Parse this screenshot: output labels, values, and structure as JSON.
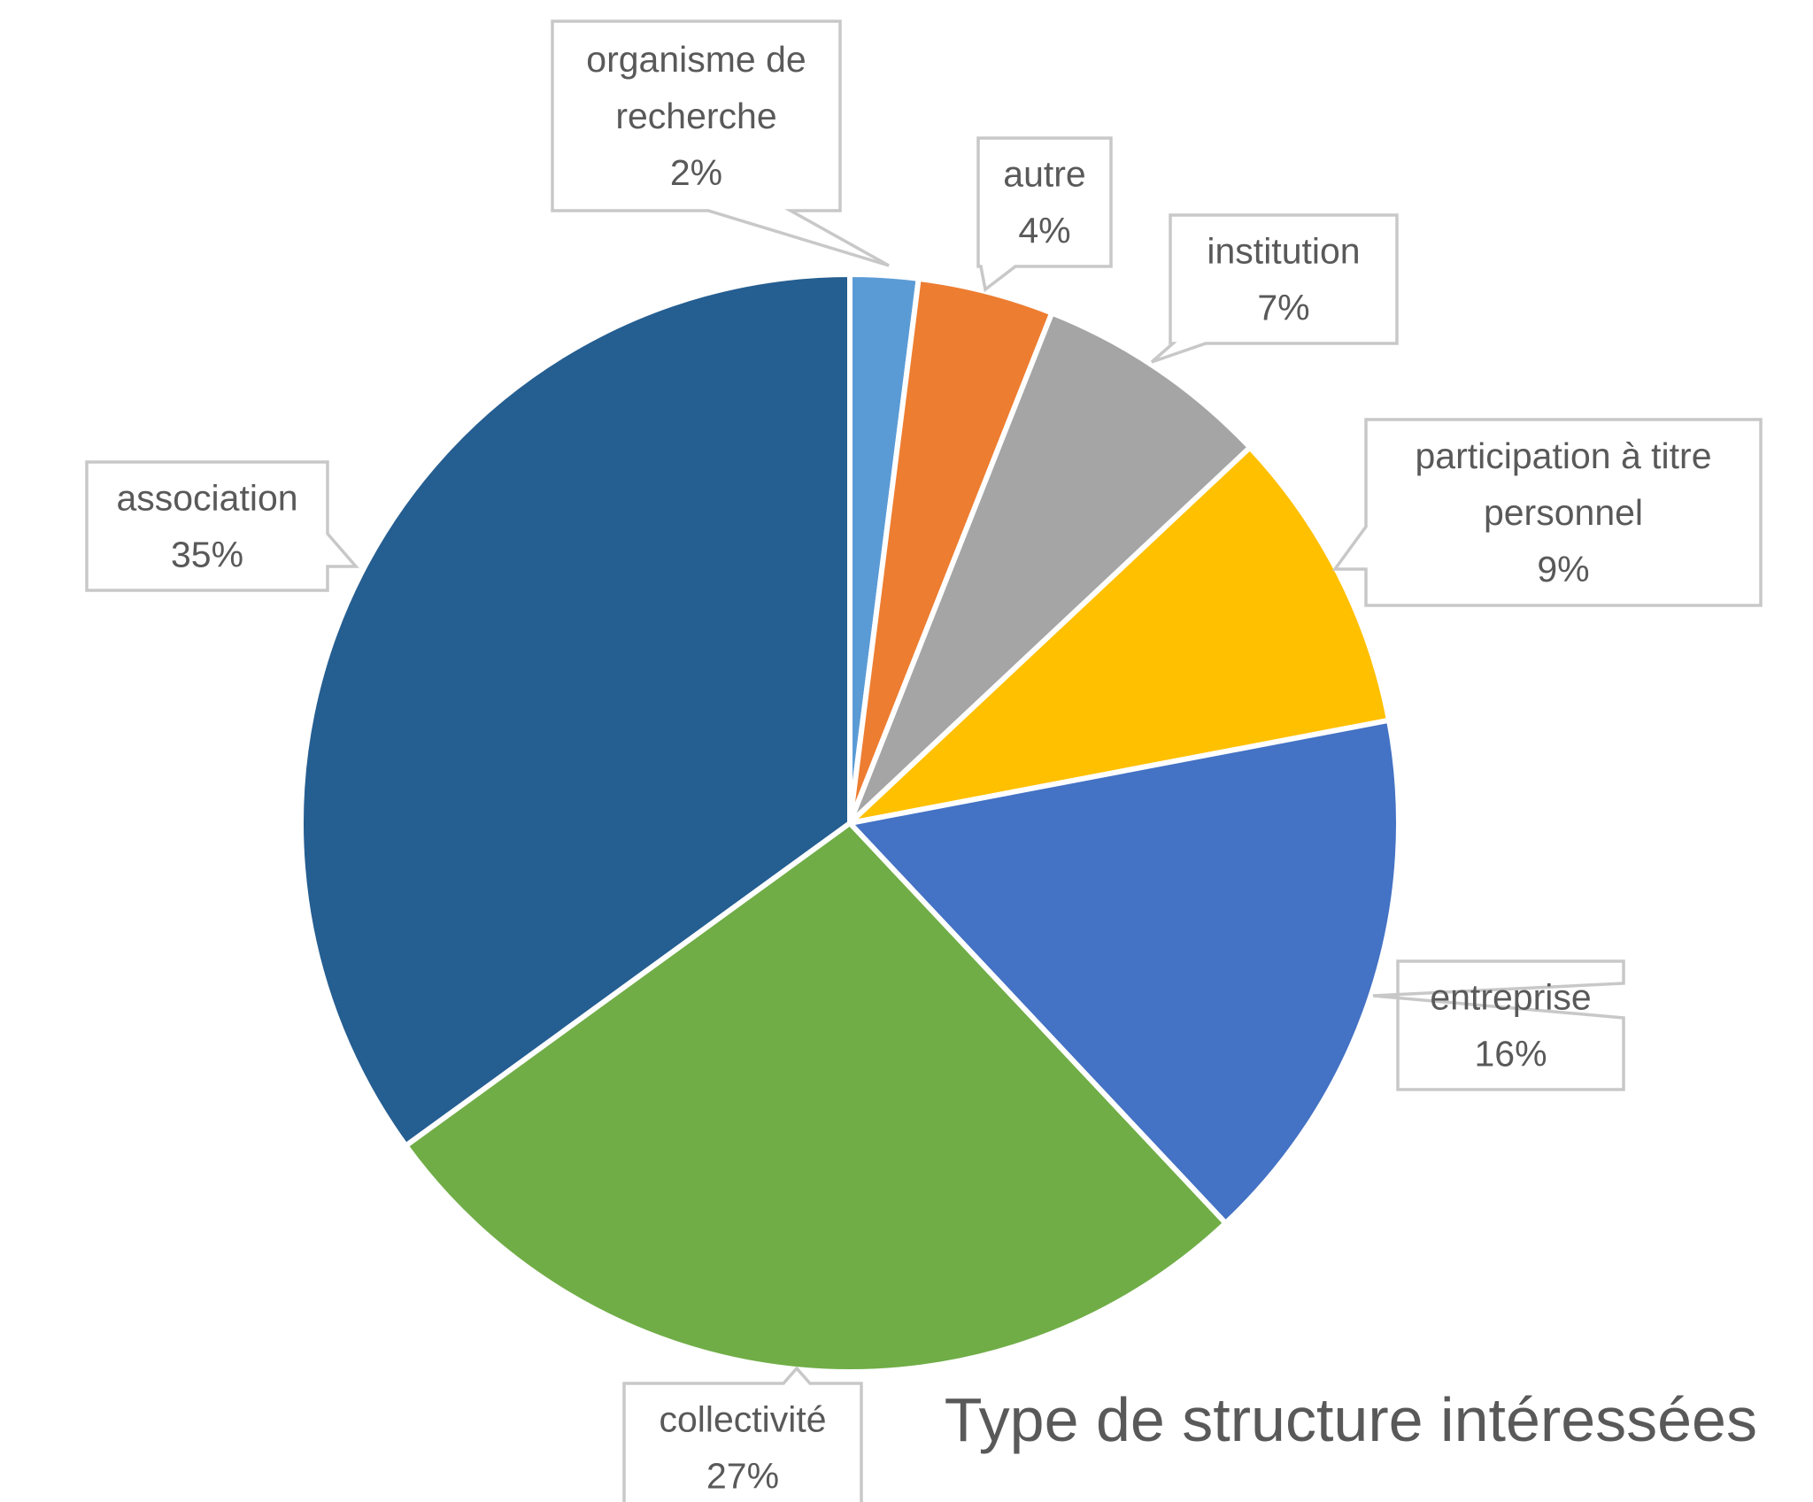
{
  "chart_data": {
    "type": "pie",
    "title": "Type de structure intéressées",
    "slices": [
      {
        "label": "organisme de recherche",
        "label_lines": [
          "organisme de",
          "recherche"
        ],
        "value": 2,
        "value_label": "2%",
        "color": "#5B9BD5"
      },
      {
        "label": "autre",
        "label_lines": [
          "autre"
        ],
        "value": 4,
        "value_label": "4%",
        "color": "#ED7D31"
      },
      {
        "label": "institution",
        "label_lines": [
          "institution"
        ],
        "value": 7,
        "value_label": "7%",
        "color": "#A5A5A5"
      },
      {
        "label": "participation à titre personnel",
        "label_lines": [
          "participation à titre",
          "personnel"
        ],
        "value": 9,
        "value_label": "9%",
        "color": "#FFC000"
      },
      {
        "label": "entreprise",
        "label_lines": [
          "entreprise"
        ],
        "value": 16,
        "value_label": "16%",
        "color": "#4472C4"
      },
      {
        "label": "collectivité",
        "label_lines": [
          "collectivité"
        ],
        "value": 27,
        "value_label": "27%",
        "color": "#70AD47"
      },
      {
        "label": "association",
        "label_lines": [
          "association"
        ],
        "value": 35,
        "value_label": "35%",
        "color": "#255E91"
      }
    ],
    "start_angle_deg": 0,
    "direction": "clockwise",
    "legend": "none",
    "data_labels": "callouts"
  }
}
